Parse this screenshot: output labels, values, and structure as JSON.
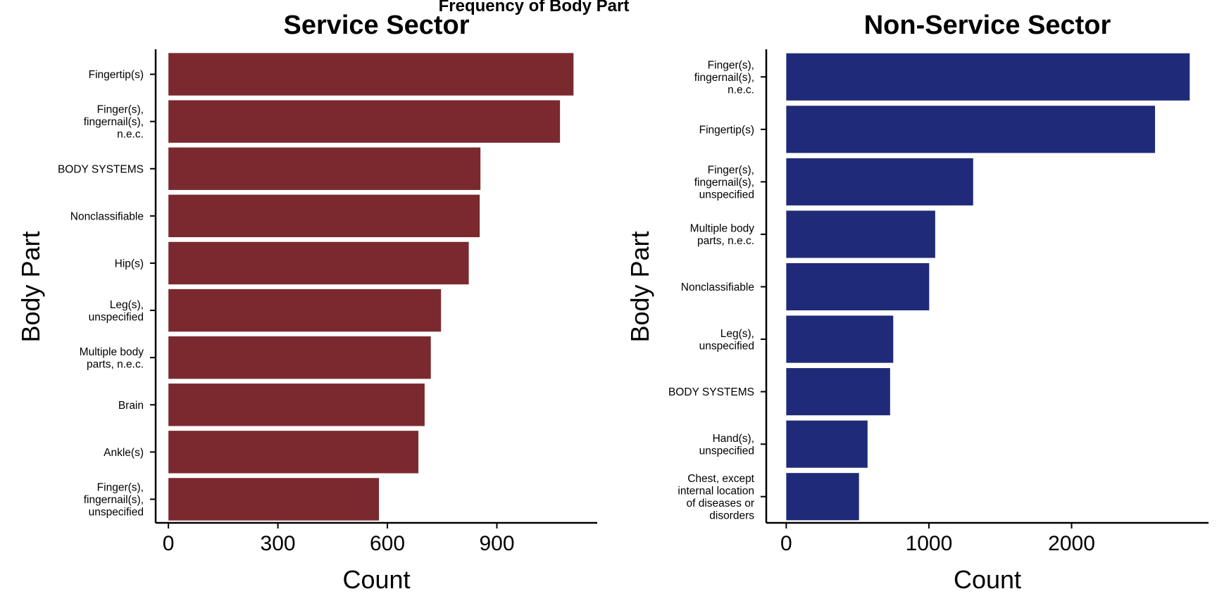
{
  "figure": {
    "suptitle": "Frequency of Body Part"
  },
  "chart_data": [
    {
      "type": "bar",
      "orientation": "horizontal",
      "title": "Service Sector",
      "xlabel": "Count",
      "ylabel": "Body Part",
      "color": "#7a2a2e",
      "xlim": [
        -35,
        1175
      ],
      "xticks": [
        0,
        300,
        600,
        900
      ],
      "xtick_labels": [
        "0",
        "300",
        "600",
        "900"
      ],
      "categories": [
        "Fingertip(s)",
        "Finger(s),\nfingernail(s),\nn.e.c.",
        "BODY SYSTEMS",
        "Nonclassifiable",
        "Hip(s)",
        "Leg(s),\nunspecified",
        "Multiple body\nparts, n.e.c.",
        "Brain",
        "Ankle(s)",
        "Finger(s),\nfingernail(s),\nunspecified"
      ],
      "values": [
        1110,
        1073,
        855,
        853,
        823,
        747,
        719,
        702,
        685,
        577
      ],
      "grid": false,
      "legend": "none"
    },
    {
      "type": "bar",
      "orientation": "horizontal",
      "title": "Non-Service Sector",
      "xlabel": "Count",
      "ylabel": "Body Part",
      "color": "#1f2b78",
      "xlim": [
        -140,
        2960
      ],
      "xticks": [
        0,
        1000,
        2000
      ],
      "xtick_labels": [
        "0",
        "1000",
        "2000"
      ],
      "categories": [
        "Finger(s),\nfingernail(s),\nn.e.c.",
        "Fingertip(s)",
        "Finger(s),\nfingernail(s),\nunspecified",
        "Multiple body\nparts, n.e.c.",
        "Nonclassifiable",
        "Leg(s),\nunspecified",
        "BODY SYSTEMS",
        "Hand(s),\nunspecified",
        "Chest, except\ninternal location\nof diseases or\ndisorders"
      ],
      "values": [
        2828,
        2585,
        1310,
        1044,
        1002,
        750,
        728,
        570,
        510
      ],
      "grid": false,
      "legend": "none"
    }
  ]
}
